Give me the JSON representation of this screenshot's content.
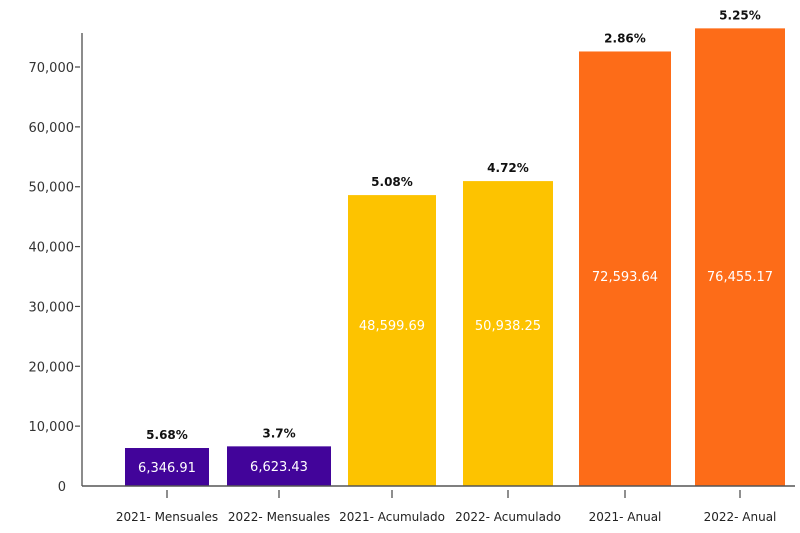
{
  "chart_data": {
    "type": "bar",
    "title": "",
    "xlabel": "",
    "ylabel": "",
    "ylim": [
      0,
      76455.17
    ],
    "yticks": [
      0,
      10000,
      20000,
      30000,
      40000,
      50000,
      60000,
      70000
    ],
    "ytick_labels": [
      "0",
      "10,000",
      "20,000",
      "30,000",
      "40,000",
      "50,000",
      "60,000",
      "70,000"
    ],
    "grid": false,
    "categories": [
      "2021- Mensuales",
      "2022- Mensuales",
      "2021- Acumulado",
      "2022- Acumulado",
      "2021- Anual",
      "2022- Anual"
    ],
    "values": [
      6346.91,
      6623.43,
      48599.69,
      50938.25,
      72593.64,
      76455.17
    ],
    "value_labels": [
      "6,346.91",
      "6,623.43",
      "48,599.69",
      "50,938.25",
      "72,593.64",
      "76,455.17"
    ],
    "annotations": [
      "5.68%",
      "3.7%",
      "5.08%",
      "4.72%",
      "2.86%",
      "5.25%"
    ],
    "colors": [
      "#42049a",
      "#42049a",
      "#fdc300",
      "#fdc300",
      "#fd6c18",
      "#fd6c18"
    ]
  }
}
